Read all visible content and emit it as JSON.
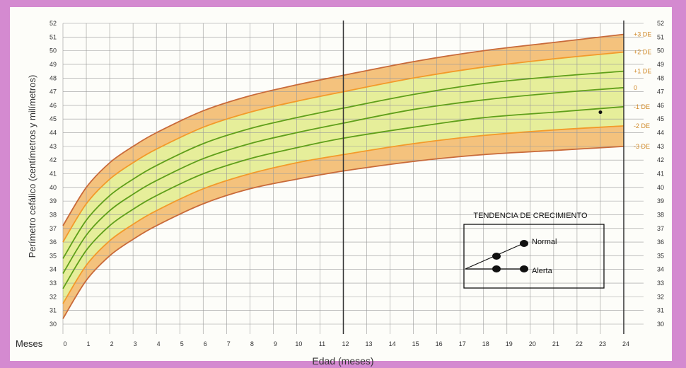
{
  "chart_data": {
    "type": "line",
    "xlabel": "Edad (meses)",
    "ylabel": "Perímetro cefálico (centímetros y milímetros)",
    "x_prefix_label": "Meses",
    "xlim": [
      0,
      24
    ],
    "ylim": [
      30,
      52
    ],
    "xticks": [
      0,
      1,
      2,
      3,
      4,
      5,
      6,
      7,
      8,
      9,
      10,
      11,
      12,
      13,
      14,
      15,
      16,
      17,
      18,
      19,
      20,
      21,
      22,
      23,
      24
    ],
    "yticks": [
      30,
      31,
      32,
      33,
      34,
      35,
      36,
      37,
      38,
      39,
      40,
      41,
      42,
      43,
      44,
      45,
      46,
      47,
      48,
      49,
      50,
      51,
      52
    ],
    "grid": true,
    "marker_line_x": 12,
    "x": [
      0,
      1,
      2,
      3,
      4,
      6,
      8,
      10,
      12,
      15,
      18,
      21,
      24
    ],
    "series": [
      {
        "name": "+3 DE",
        "color": "#c86a3a",
        "values": [
          37.2,
          40.0,
          41.8,
          43.0,
          44.0,
          45.6,
          46.7,
          47.5,
          48.2,
          49.2,
          50.0,
          50.6,
          51.2
        ]
      },
      {
        "name": "+2 DE",
        "color": "#f39a2a",
        "values": [
          36.0,
          38.8,
          40.6,
          41.8,
          42.8,
          44.4,
          45.5,
          46.3,
          47.0,
          48.0,
          48.8,
          49.4,
          49.9
        ]
      },
      {
        "name": "+1 DE",
        "color": "#5f9f1a",
        "values": [
          34.8,
          37.6,
          39.4,
          40.6,
          41.6,
          43.2,
          44.3,
          45.1,
          45.8,
          46.8,
          47.6,
          48.1,
          48.5
        ]
      },
      {
        "name": "0",
        "color": "#5f9f1a",
        "values": [
          33.7,
          36.5,
          38.3,
          39.5,
          40.5,
          42.1,
          43.2,
          44.0,
          44.7,
          45.7,
          46.4,
          46.9,
          47.3
        ]
      },
      {
        "name": "-1 DE",
        "color": "#5f9f1a",
        "values": [
          32.6,
          35.4,
          37.2,
          38.4,
          39.4,
          41.0,
          42.1,
          42.9,
          43.6,
          44.4,
          45.1,
          45.5,
          45.9
        ]
      },
      {
        "name": "-2 DE",
        "color": "#f39a2a",
        "values": [
          31.5,
          34.3,
          36.1,
          37.3,
          38.3,
          39.9,
          41.0,
          41.8,
          42.4,
          43.2,
          43.8,
          44.2,
          44.5
        ]
      },
      {
        "name": "-3 DE",
        "color": "#c86a3a",
        "values": [
          30.4,
          33.2,
          35.0,
          36.2,
          37.2,
          38.8,
          39.9,
          40.6,
          41.2,
          41.9,
          42.4,
          42.7,
          43.0
        ]
      }
    ],
    "band_colors": {
      "outer": "#f4c27d",
      "inner": "#e6ee9a"
    },
    "curve_labels": [
      "+3 DE",
      "+2 DE",
      "+1 DE",
      "0",
      "-1 DE",
      "-2 DE",
      "-3 DE"
    ],
    "legend": {
      "title": "TENDENCIA DE CRECIMIENTO",
      "items": [
        {
          "label": "Normal",
          "trend": "up"
        },
        {
          "label": "Alerta",
          "trend": "flat"
        }
      ]
    },
    "point": {
      "x": 23,
      "y": 45.5
    }
  }
}
